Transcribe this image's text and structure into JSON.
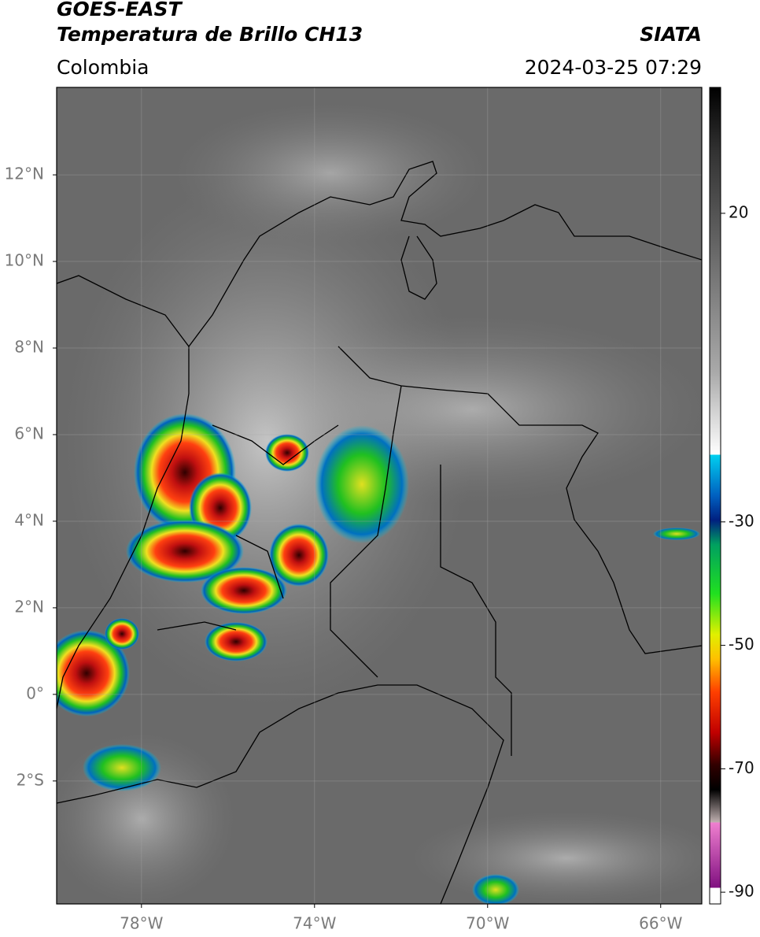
{
  "header": {
    "satellite": "GOES-EAST",
    "product": "Temperatura de Brillo CH13",
    "source": "SIATA",
    "region": "Colombia",
    "timestamp": "2024-03-25 07:29"
  },
  "map": {
    "lonlim": [
      -79.96,
      -65.05
    ],
    "latlim": [
      14.02,
      -4.84
    ],
    "lonticks": [
      {
        "value": -78,
        "label": "78°W"
      },
      {
        "value": -74,
        "label": "74°W"
      },
      {
        "value": -70,
        "label": "70°W"
      },
      {
        "value": -66,
        "label": "66°W"
      }
    ],
    "latticks": [
      {
        "value": 12,
        "label": "12°N"
      },
      {
        "value": 10,
        "label": "10°N"
      },
      {
        "value": 8,
        "label": "8°N"
      },
      {
        "value": 6,
        "label": "6°N"
      },
      {
        "value": 4,
        "label": "4°N"
      },
      {
        "value": 2,
        "label": "2°N"
      },
      {
        "value": 0,
        "label": "0°"
      },
      {
        "value": -2,
        "label": "2°S"
      }
    ],
    "grid": true
  },
  "colorbar": {
    "lim": [
      40.4,
      -91.9
    ],
    "ticks": [
      20,
      -30,
      -50,
      -70,
      -90
    ]
  }
}
